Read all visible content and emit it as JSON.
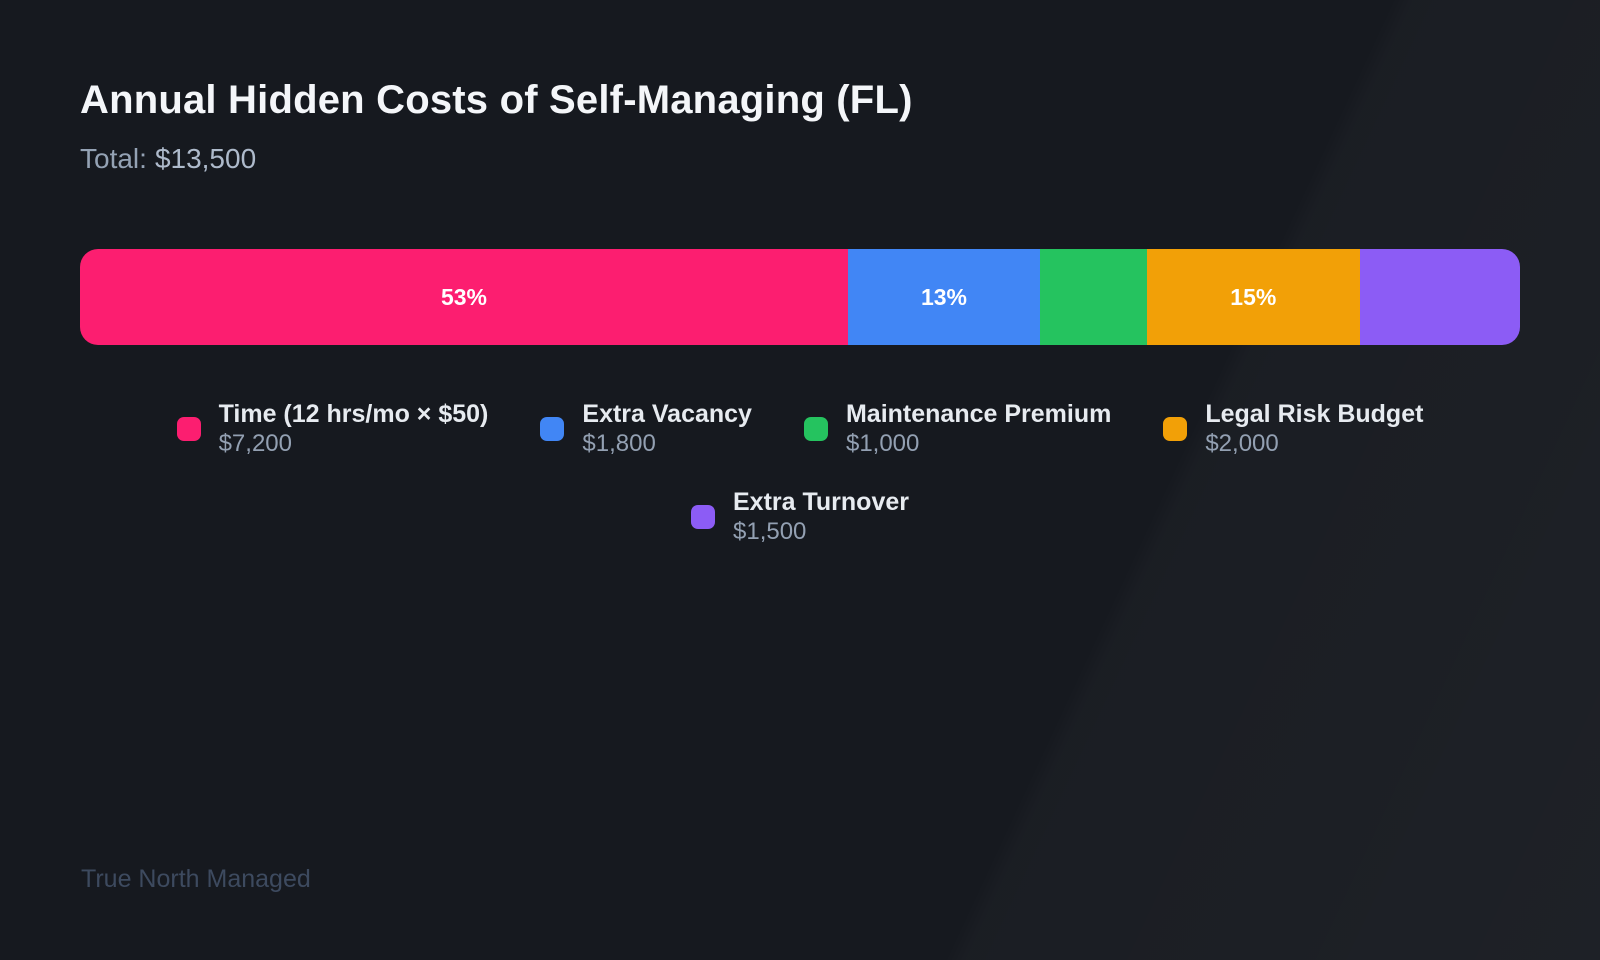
{
  "page": {
    "title": "Annual Hidden Costs of Self-Managing (FL)",
    "total_label": "Total:",
    "total_value": "$13,500",
    "footer_brand": "True North Managed"
  },
  "colors": {
    "background": "#16191f",
    "title_text": "#f4f6f9",
    "subtitle_text": "#94a2b4",
    "legend_name_text": "#e7ebf0",
    "legend_value_text": "#93a0b2",
    "footer_text": "#3d4a5f",
    "percent_label_text": "#ffffff"
  },
  "chart_data": {
    "type": "bar",
    "variant": "horizontal-stacked-single-bar",
    "title": "Annual Hidden Costs of Self-Managing (FL)",
    "subtitle": "Total: $13,500",
    "total": 13500,
    "total_display": "$13,500",
    "legend_position": "below-center",
    "grid": false,
    "segments": [
      {
        "name": "Time (12 hrs/mo × $50)",
        "value": 7200,
        "value_display": "$7,200",
        "percent": 53.3,
        "percent_label": "53%",
        "color": "#fc1e70"
      },
      {
        "name": "Extra Vacancy",
        "value": 1800,
        "value_display": "$1,800",
        "percent": 13.3,
        "percent_label": "13%",
        "color": "#4186f5"
      },
      {
        "name": "Maintenance Premium",
        "value": 1000,
        "value_display": "$1,000",
        "percent": 7.4,
        "percent_label": "",
        "color": "#25c35f"
      },
      {
        "name": "Legal Risk Budget",
        "value": 2000,
        "value_display": "$2,000",
        "percent": 14.8,
        "percent_label": "15%",
        "color": "#f2a007"
      },
      {
        "name": "Extra Turnover",
        "value": 1500,
        "value_display": "$1,500",
        "percent": 11.1,
        "percent_label": "",
        "color": "#8c5cf5"
      }
    ]
  }
}
